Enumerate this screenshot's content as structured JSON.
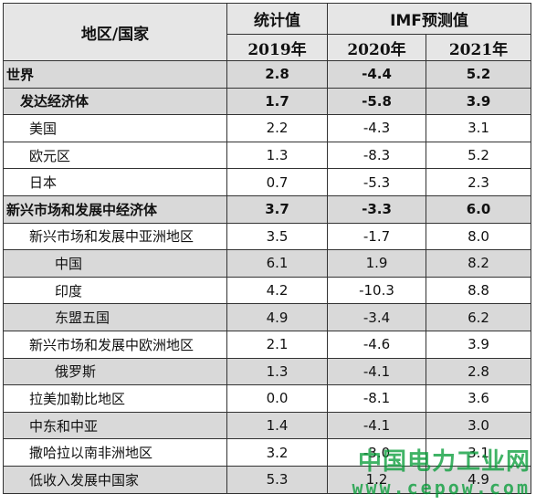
{
  "header": {
    "region": "地区/国家",
    "actual": "统计值",
    "forecast": "IMF预测值",
    "years": [
      "2019年",
      "2020年",
      "2021年"
    ]
  },
  "rows": [
    {
      "name": "世界",
      "v2019": "2.8",
      "v2020": "-4.4",
      "v2021": "5.2"
    },
    {
      "name": "发达经济体",
      "v2019": "1.7",
      "v2020": "-5.8",
      "v2021": "3.9"
    },
    {
      "name": "美国",
      "v2019": "2.2",
      "v2020": "-4.3",
      "v2021": "3.1"
    },
    {
      "name": "欧元区",
      "v2019": "1.3",
      "v2020": "-8.3",
      "v2021": "5.2"
    },
    {
      "name": "日本",
      "v2019": "0.7",
      "v2020": "-5.3",
      "v2021": "2.3"
    },
    {
      "name": "新兴市场和发展中经济体",
      "v2019": "3.7",
      "v2020": "-3.3",
      "v2021": "6.0"
    },
    {
      "name": "新兴市场和发展中亚洲地区",
      "v2019": "3.5",
      "v2020": "-1.7",
      "v2021": "8.0"
    },
    {
      "name": "中国",
      "v2019": "6.1",
      "v2020": "1.9",
      "v2021": "8.2"
    },
    {
      "name": "印度",
      "v2019": "4.2",
      "v2020": "-10.3",
      "v2021": "8.8"
    },
    {
      "name": "东盟五国",
      "v2019": "4.9",
      "v2020": "-3.4",
      "v2021": "6.2"
    },
    {
      "name": "新兴市场和发展中欧洲地区",
      "v2019": "2.1",
      "v2020": "-4.6",
      "v2021": "3.9"
    },
    {
      "name": "俄罗斯",
      "v2019": "1.3",
      "v2020": "-4.1",
      "v2021": "2.8"
    },
    {
      "name": "拉美加勒比地区",
      "v2019": "0.0",
      "v2020": "-8.1",
      "v2021": "3.6"
    },
    {
      "name": "中东和中亚",
      "v2019": "1.4",
      "v2020": "-4.1",
      "v2021": "3.0"
    },
    {
      "name": "撒哈拉以南非洲地区",
      "v2019": "3.2",
      "v2020": "-3.0",
      "v2021": "3.1"
    },
    {
      "name": "低收入发展中国家",
      "v2019": "5.3",
      "v2020": "1.2",
      "v2021": "4.9"
    }
  ],
  "watermark": {
    "line1": "中国电力工业网",
    "line2": "www.cepow.com"
  }
}
